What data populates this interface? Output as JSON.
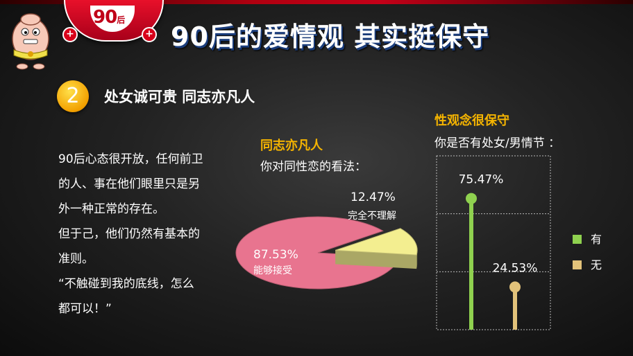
{
  "header": {
    "badge_number": "90",
    "badge_suffix": "后",
    "plus_symbol": "+",
    "title": "90后的爱情观 其实挺保守"
  },
  "section": {
    "number": "2",
    "title": "处女诚可贵  同志亦凡人"
  },
  "body_text": [
    "90后心态很开放，任何前卫",
    "的人、事在他们眼里只是另",
    "外一种正常的存在。",
    "但于己，他们仍然有基本的",
    "准则。",
    "“不触碰到我的底线，怎么",
    "都可以！”"
  ],
  "pie_header": {
    "title": "同志亦凡人",
    "subtitle": "你对同性恋的看法："
  },
  "bar_header": {
    "title": "性观念很保守",
    "subtitle": "你是否有处女/男情节 ："
  },
  "chart_data": [
    {
      "type": "pie",
      "title": "同志亦凡人",
      "subtitle": "你对同性恋的看法：",
      "slices": [
        {
          "label": "能够接受",
          "value": 87.53,
          "value_label": "87.53%",
          "color": "#e8748f"
        },
        {
          "label": "完全不理解",
          "value": 12.47,
          "value_label": "12.47%",
          "color": "#f3ee90"
        }
      ]
    },
    {
      "type": "bar",
      "title": "性观念很保守",
      "subtitle": "你是否有处女/男情节 ：",
      "categories": [
        "有",
        "无"
      ],
      "values": [
        75.47,
        24.53
      ],
      "value_labels": [
        "75.47%",
        "24.53%"
      ],
      "colors": [
        "#8fd14f",
        "#e2c27a"
      ],
      "ylim": [
        0,
        100
      ],
      "grid": true,
      "legend": "right"
    }
  ]
}
